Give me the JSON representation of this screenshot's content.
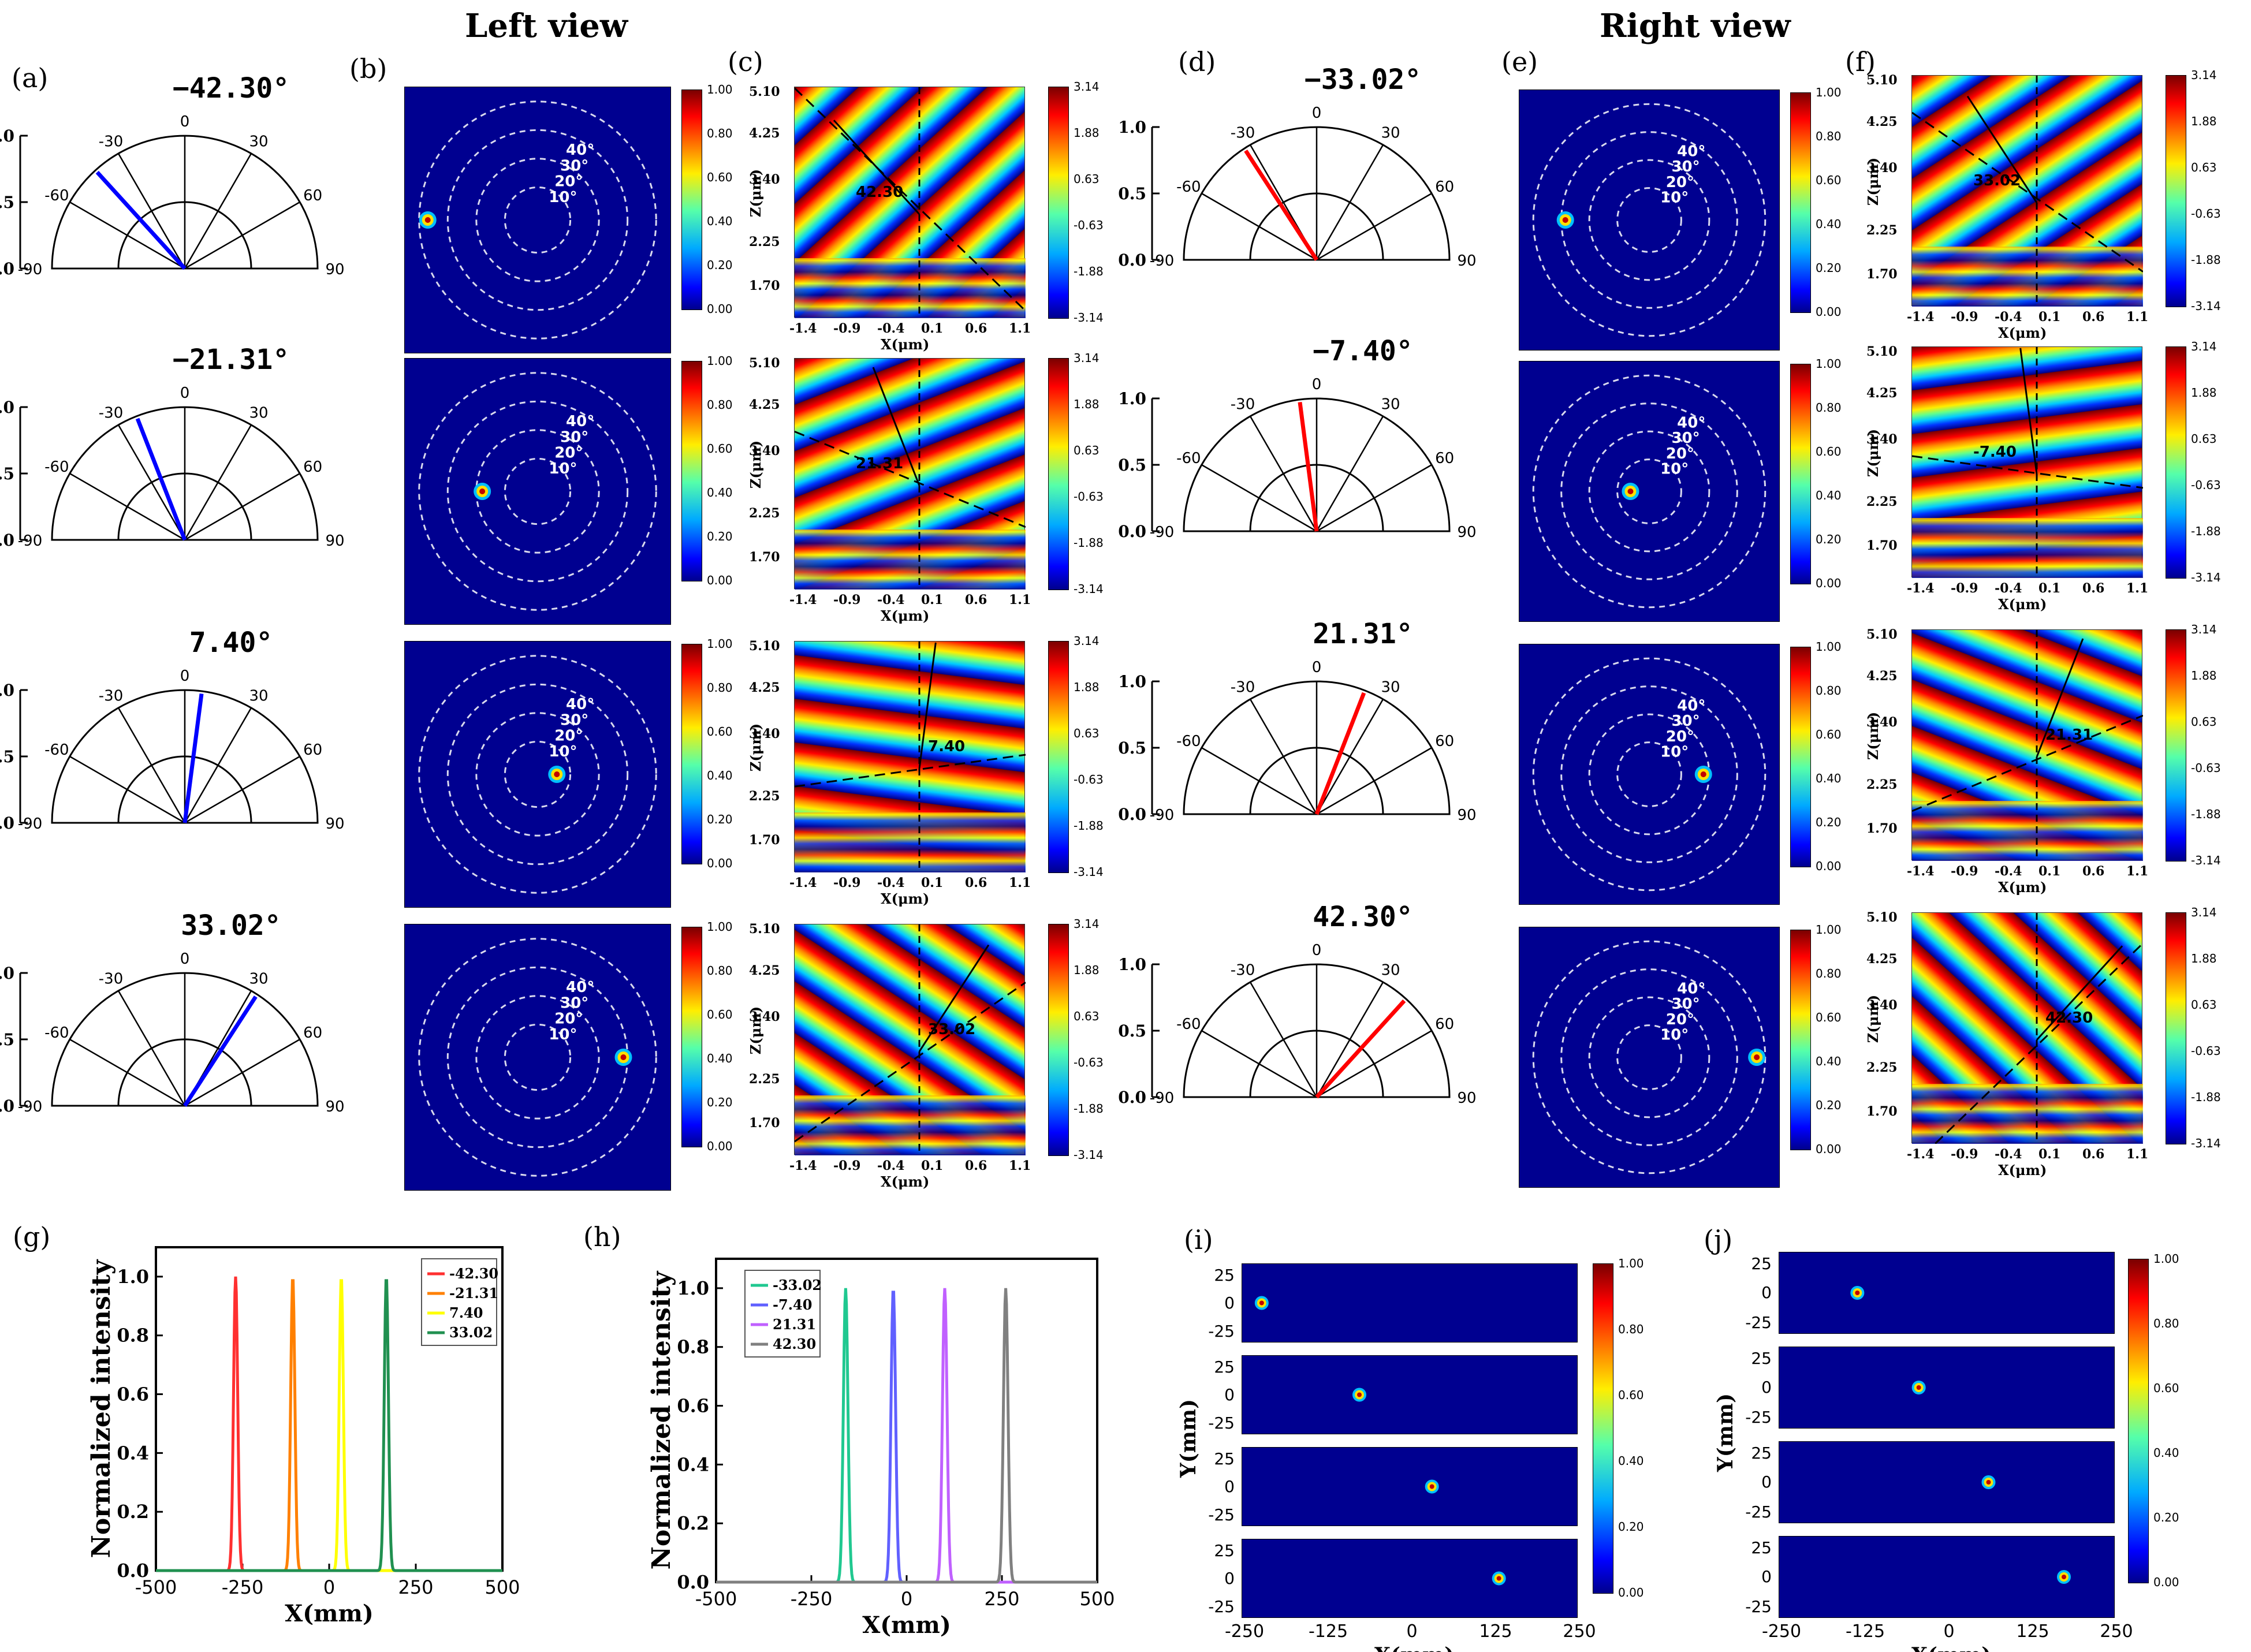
{
  "headings": {
    "left": "Left view",
    "right": "Right view"
  },
  "labels": {
    "a": "(a)",
    "b": "(b)",
    "c": "(c)",
    "d": "(d)",
    "e": "(e)",
    "f": "(f)",
    "g": "(g)",
    "h": "(h)",
    "i": "(i)",
    "j": "(j)"
  },
  "colors": {
    "left": "#0000ff",
    "right": "#ff0000"
  },
  "rows": {
    "left": [
      {
        "angle": "−42.30°",
        "val": -42.3,
        "ann": "42.30"
      },
      {
        "angle": "−21.31°",
        "val": -21.31,
        "ann": "21.31"
      },
      {
        "angle": "7.40°",
        "val": 7.4,
        "ann": "7.40"
      },
      {
        "angle": "33.02°",
        "val": 33.02,
        "ann": "33.02"
      }
    ],
    "right": [
      {
        "angle": "−33.02°",
        "val": -33.02,
        "ann": "33.02"
      },
      {
        "angle": "−7.40°",
        "val": -7.4,
        "ann": "-7.40"
      },
      {
        "angle": "21.31°",
        "val": 21.31,
        "ann": "21.31"
      },
      {
        "angle": "42.30°",
        "val": 42.3,
        "ann": "42.30"
      }
    ]
  },
  "polar": {
    "r_ticks": [
      "1.0",
      "0.5",
      "0.0"
    ],
    "theta_ticks": [
      "-90",
      "-60",
      "-30",
      "0",
      "30",
      "60",
      "90"
    ]
  },
  "rings": [
    "10°",
    "20°",
    "30°",
    "40°"
  ],
  "intensity_bar": {
    "ticks": [
      "1.00",
      "0.80",
      "0.60",
      "0.40",
      "0.20",
      "0.00"
    ]
  },
  "phase_bar": {
    "ticks": [
      "3.14",
      "1.88",
      "0.63",
      "-0.63",
      "-1.88",
      "-3.14"
    ]
  },
  "phase_axes": {
    "z_ticks": [
      "5.10",
      "4.25",
      "3.40",
      "2.25",
      "1.70"
    ],
    "x_ticks": [
      "-1.4",
      "-0.9",
      "-0.4",
      "0.1",
      "0.6",
      "1.1"
    ],
    "xlabel": "X(μm)",
    "ylabel": "Z(μm)"
  },
  "chart_data": [
    {
      "id": "g",
      "type": "line",
      "xlabel": "X(mm)",
      "ylabel": "Normalized intensity",
      "xlim": [
        -500,
        500
      ],
      "ylim": [
        0,
        1.1
      ],
      "xticks": [
        "-500",
        "-250",
        "0",
        "250",
        "500"
      ],
      "yticks": [
        "0.0",
        "0.2",
        "0.4",
        "0.6",
        "0.8",
        "1.0"
      ],
      "legend_loc": "top-right",
      "series": [
        {
          "name": "-42.30",
          "peak": -270,
          "color": "#ff3030"
        },
        {
          "name": "-21.31",
          "peak": -105,
          "color": "#ff8000"
        },
        {
          "name": "7.40",
          "peak": 35,
          "color": "#ffff00"
        },
        {
          "name": "33.02",
          "peak": 165,
          "color": "#209050"
        }
      ]
    },
    {
      "id": "h",
      "type": "line",
      "xlabel": "X(mm)",
      "ylabel": "Normalized intensity",
      "xlim": [
        -500,
        500
      ],
      "ylim": [
        0,
        1.1
      ],
      "xticks": [
        "-500",
        "-250",
        "0",
        "250",
        "500"
      ],
      "yticks": [
        "0.0",
        "0.2",
        "0.4",
        "0.6",
        "0.8",
        "1.0"
      ],
      "legend_loc": "top-left",
      "series": [
        {
          "name": "-33.02",
          "peak": -160,
          "color": "#20c890"
        },
        {
          "name": "-7.40",
          "peak": -35,
          "color": "#6060ff"
        },
        {
          "name": "21.31",
          "peak": 100,
          "color": "#c060ff"
        },
        {
          "name": "42.30",
          "peak": 260,
          "color": "#808080"
        }
      ]
    },
    {
      "id": "i",
      "type": "heatmap",
      "xlabel": "X(mm)",
      "ylabel": "Y(mm)",
      "xticks": [
        "-250",
        "-125",
        "0",
        "125",
        "250"
      ],
      "yticks": [
        "25",
        "0",
        "-25"
      ],
      "spots": [
        -265,
        -90,
        40,
        160
      ]
    },
    {
      "id": "j",
      "type": "heatmap",
      "xlabel": "X(mm)",
      "ylabel": "Y(mm)",
      "xticks": [
        "-250",
        "0",
        "125",
        "250"
      ],
      "xticks_all": [
        "-250",
        "-125",
        "0",
        "125",
        "250"
      ],
      "yticks": [
        "25",
        "0",
        "-25"
      ],
      "spots": [
        -160,
        -50,
        75,
        210
      ]
    }
  ]
}
